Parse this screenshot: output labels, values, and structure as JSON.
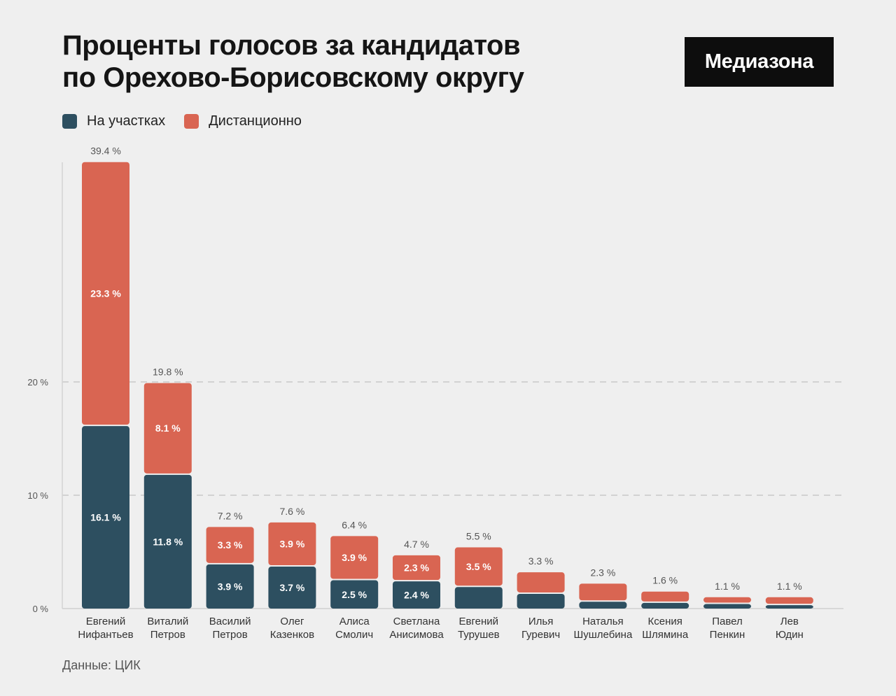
{
  "title": {
    "line1": "Проценты голосов за кандидатов",
    "line2": "по Орехово-Борисовскому округу"
  },
  "logo": "Медиазона",
  "legend": [
    {
      "label": "На участках",
      "color": "#2d4f60"
    },
    {
      "label": "Дистанционно",
      "color": "#d96552"
    }
  ],
  "source": "Данные: ЦИК",
  "chart_data": {
    "type": "bar",
    "stacked": true,
    "title": "Проценты голосов за кандидатов по Орехово-Борисовскому округу",
    "xlabel": "",
    "ylabel": "",
    "ylim": [
      0,
      40
    ],
    "yticks": [
      {
        "value": 0,
        "label": "0 %"
      },
      {
        "value": 10,
        "label": "10 %"
      },
      {
        "value": 20,
        "label": "20 %"
      }
    ],
    "grid": true,
    "categories": [
      [
        "Евгений",
        "Нифантьев"
      ],
      [
        "Виталий",
        "Петров"
      ],
      [
        "Василий",
        "Петров"
      ],
      [
        "Олег",
        "Казенков"
      ],
      [
        "Алиса",
        "Смолич"
      ],
      [
        "Светлана",
        "Анисимова"
      ],
      [
        "Евгений",
        "Турушев"
      ],
      [
        "Илья",
        "Гуревич"
      ],
      [
        "Наталья",
        "Шушлебина"
      ],
      [
        "Ксения",
        "Шлямина"
      ],
      [
        "Павел",
        "Пенкин"
      ],
      [
        "Лев",
        "Юдин"
      ]
    ],
    "series": [
      {
        "name": "На участках",
        "color": "#2d4f60",
        "values": [
          16.1,
          11.8,
          3.9,
          3.7,
          2.5,
          2.4,
          1.9,
          1.3,
          0.6,
          0.5,
          0.4,
          0.3
        ],
        "labels": [
          "16.1 %",
          "11.8 %",
          "3.9 %",
          "3.7 %",
          "2.5 %",
          "2.4 %",
          "",
          "",
          "",
          "",
          "",
          ""
        ]
      },
      {
        "name": "Дистанционно",
        "color": "#d96552",
        "values": [
          23.3,
          8.1,
          3.3,
          3.9,
          3.9,
          2.3,
          3.5,
          1.9,
          1.6,
          1.0,
          0.6,
          0.7
        ],
        "labels": [
          "23.3 %",
          "8.1 %",
          "3.3 %",
          "3.9 %",
          "3.9 %",
          "2.3 %",
          "3.5 %",
          "",
          "",
          "",
          "",
          ""
        ]
      }
    ],
    "totals": [
      "39.4 %",
      "19.8 %",
      "7.2 %",
      "7.6 %",
      "6.4 %",
      "4.7 %",
      "5.5 %",
      "3.3 %",
      "2.3 %",
      "1.6 %",
      "1.1 %",
      "1.1 %"
    ]
  }
}
